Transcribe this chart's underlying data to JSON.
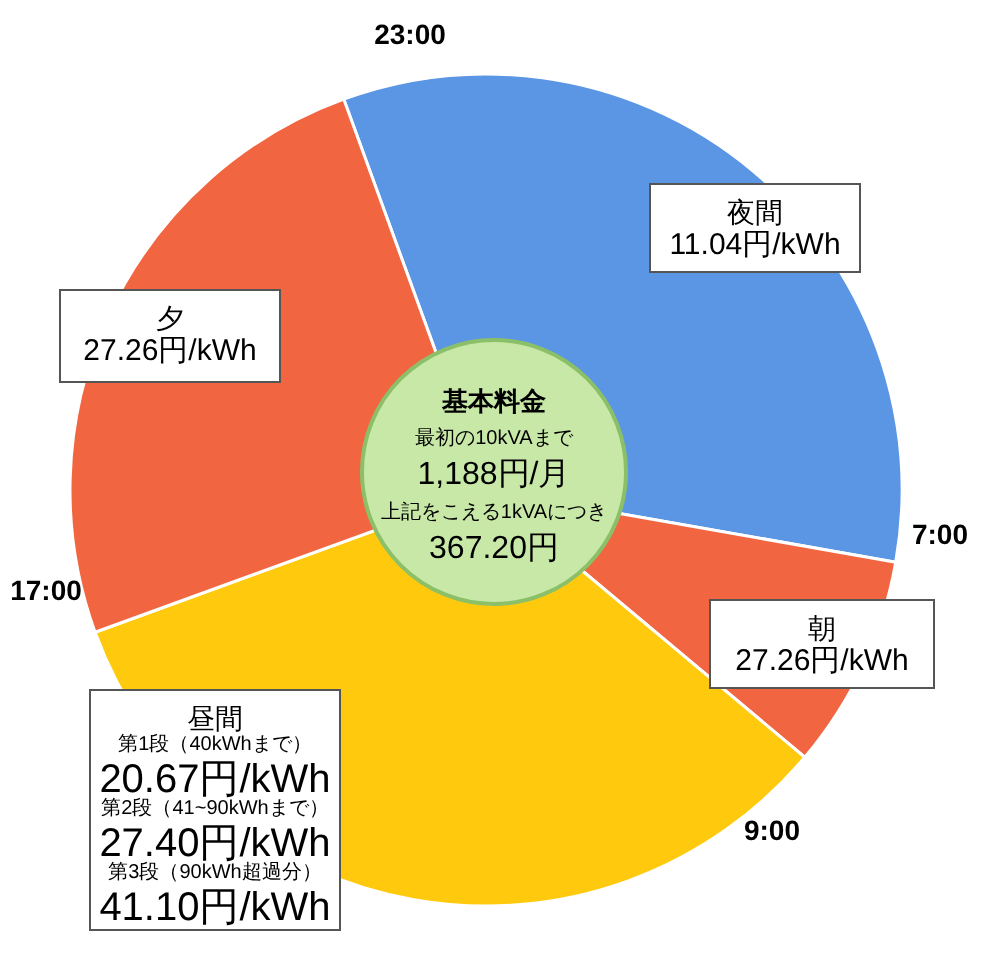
{
  "chart_data": {
    "type": "pie",
    "categories": [
      "夜間",
      "朝",
      "昼間",
      "夕"
    ],
    "values": [
      33.33,
      8.33,
      33.34,
      25
    ],
    "colors": [
      "#5a96e3",
      "#f26541",
      "#ffc90e",
      "#f26541"
    ],
    "annotations": [
      "23:00",
      "7:00",
      "9:00",
      "17:00",
      "11.04円/kWh",
      "27.26円/kWh",
      "第1段（40kWhまで）",
      "20.67円/kWh",
      "第2段（41~90kWhまで）",
      "27.40円/kWh",
      "第3段（90kWh超過分）",
      "41.10円/kWh",
      "27.26円/kWh",
      "基本料金",
      "最初の10kVAまで",
      "1,188円/月",
      "上記をこえる1kVAにつき",
      "367.20円"
    ]
  }
}
